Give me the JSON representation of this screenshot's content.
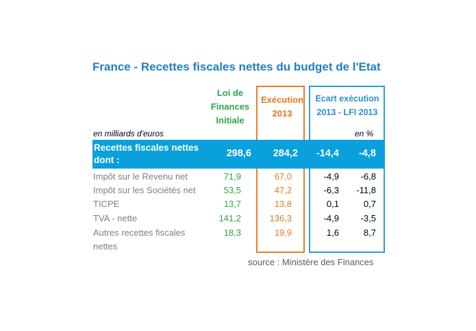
{
  "title": "France - Recettes fiscales nettes du budget de l'Etat",
  "headers": {
    "lfi_line1": "Loi de",
    "lfi_line2": "Finances",
    "lfi_line3": "Initiale",
    "exec_line1": "Exécution",
    "exec_line2": "2013",
    "ecart_line1": "Ecart exécution",
    "ecart_line2": "2013 - LFI 2013"
  },
  "units": {
    "amount": "en milliards d'euros",
    "pct": "en %"
  },
  "total": {
    "label_line1": "Recettes fiscales nettes",
    "label_line2": "dont :",
    "lfi": "298,6",
    "exec": "284,2",
    "ecart": "-14,4",
    "pct": "-4,8"
  },
  "rows": [
    {
      "label": "Impôt sur le Revenu net",
      "lfi": "71,9",
      "exec": "67,0",
      "ecart": "-4,9",
      "pct": "-6,8"
    },
    {
      "label": "Impôt sur les Sociétés net",
      "lfi": "53,5",
      "exec": "47,2",
      "ecart": "-6,3",
      "pct": "-11,8"
    },
    {
      "label": "TICPE",
      "lfi": "13,7",
      "exec": "13,8",
      "ecart": "0,1",
      "pct": "0,7"
    },
    {
      "label": "TVA - nette",
      "lfi": "141,2",
      "exec": "136,3",
      "ecart": "-4,9",
      "pct": "-3,5"
    },
    {
      "label": "Autres recettes fiscales nettes",
      "lfi": "18,3",
      "exec": "19,9",
      "ecart": "1,6",
      "pct": "8,7"
    }
  ],
  "source": "source : Ministère des Finances",
  "colors": {
    "title": "#1f7fc4",
    "lfi": "#2ca44a",
    "exec": "#e07a20",
    "ecart": "#2a9dd6",
    "band": "#0aa0dc"
  }
}
